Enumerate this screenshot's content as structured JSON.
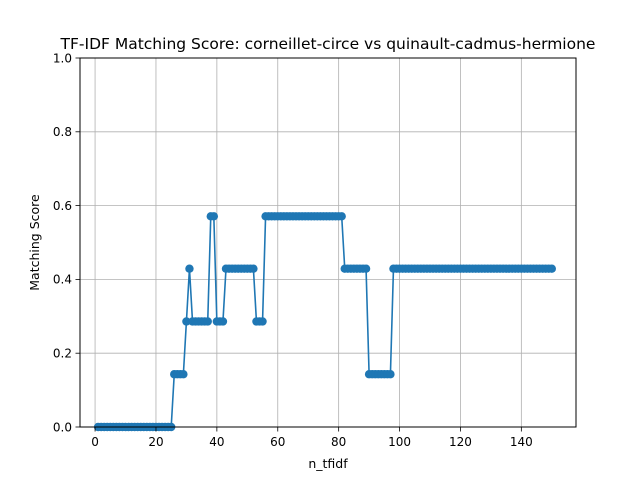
{
  "chart_data": {
    "type": "line",
    "title": "TF-IDF Matching Score: corneillet-circe vs quinault-cadmus-hermione",
    "xlabel": "n_tfidf",
    "ylabel": "Matching Score",
    "xlim": [
      -4.95,
      157.95
    ],
    "ylim": [
      0,
      1
    ],
    "grid": true,
    "x_ticks": [
      0,
      20,
      40,
      60,
      80,
      100,
      120,
      140
    ],
    "x_tick_labels": [
      "0",
      "20",
      "40",
      "60",
      "80",
      "100",
      "120",
      "140"
    ],
    "y_ticks": [
      0,
      0.2,
      0.4,
      0.6,
      0.8,
      1.0
    ],
    "y_tick_labels": [
      "0.0",
      "0.2",
      "0.4",
      "0.6",
      "0.8",
      "1.0"
    ],
    "series": [
      {
        "color": "#1f77b4",
        "marker": "circle",
        "segments": [
          {
            "from": 1,
            "to": 25,
            "value": 0.0
          },
          {
            "from": 26,
            "to": 29,
            "value": 0.143
          },
          {
            "from": 30,
            "to": 30,
            "value": 0.286
          },
          {
            "from": 31,
            "to": 31,
            "value": 0.429
          },
          {
            "from": 32,
            "to": 37,
            "value": 0.286
          },
          {
            "from": 38,
            "to": 39,
            "value": 0.571
          },
          {
            "from": 40,
            "to": 42,
            "value": 0.286
          },
          {
            "from": 43,
            "to": 52,
            "value": 0.429
          },
          {
            "from": 53,
            "to": 55,
            "value": 0.286
          },
          {
            "from": 56,
            "to": 81,
            "value": 0.571
          },
          {
            "from": 82,
            "to": 89,
            "value": 0.429
          },
          {
            "from": 90,
            "to": 97,
            "value": 0.143
          },
          {
            "from": 98,
            "to": 150,
            "value": 0.429
          }
        ]
      }
    ]
  }
}
